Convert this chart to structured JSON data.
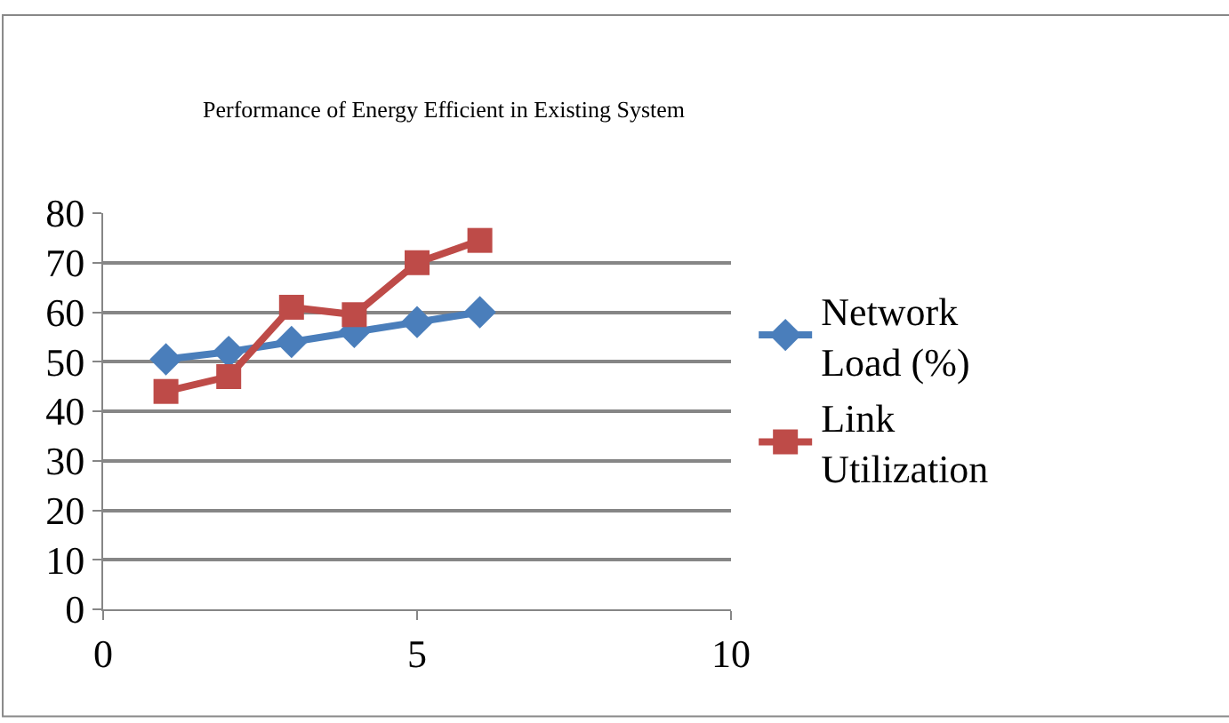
{
  "chart_data": {
    "type": "line",
    "title": "Performance of Energy Efficient in Existing System",
    "x": [
      1,
      2,
      3,
      4,
      5,
      6
    ],
    "series": [
      {
        "name": "Network Load (%)",
        "color": "#4a7ebb",
        "marker": "diamond",
        "values": [
          50.5,
          52,
          54,
          56,
          58,
          60
        ]
      },
      {
        "name": "Link Utilization",
        "color": "#be4b48",
        "marker": "square",
        "values": [
          44,
          47,
          61,
          59.5,
          70,
          74.5
        ]
      }
    ],
    "xlim": [
      0,
      10
    ],
    "xticks": [
      0,
      5,
      10
    ],
    "ylim": [
      0,
      80
    ],
    "yticks": [
      0,
      10,
      20,
      30,
      40,
      50,
      60,
      70,
      80
    ],
    "grid": "y",
    "legend": "right"
  }
}
